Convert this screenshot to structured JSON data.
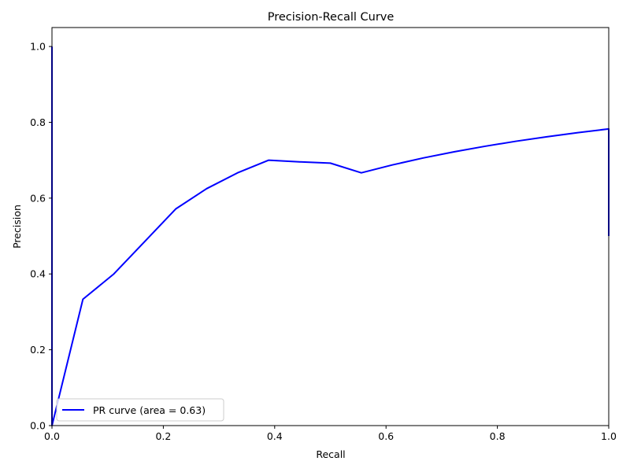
{
  "chart_data": {
    "type": "line",
    "title": "Precision-Recall Curve",
    "xlabel": "Recall",
    "ylabel": "Precision",
    "xlim": [
      0.0,
      1.0
    ],
    "ylim": [
      0.0,
      1.05
    ],
    "xticks": [
      0.0,
      0.2,
      0.4,
      0.6,
      0.8,
      1.0
    ],
    "xtick_labels": [
      "0.0",
      "0.2",
      "0.4",
      "0.6",
      "0.8",
      "1.0"
    ],
    "yticks": [
      0.0,
      0.2,
      0.4,
      0.6,
      0.8,
      1.0
    ],
    "ytick_labels": [
      "0.0",
      "0.2",
      "0.4",
      "0.6",
      "0.8",
      "1.0"
    ],
    "grid": false,
    "legend_position": "lower left",
    "series": [
      {
        "name": "PR curve (area = 0.63)",
        "color": "#0000ff",
        "x": [
          0.0,
          0.0,
          0.0,
          0.0556,
          0.1111,
          0.1667,
          0.2222,
          0.2778,
          0.3333,
          0.3889,
          0.4444,
          0.5,
          0.5556,
          0.6111,
          0.6667,
          0.7222,
          0.7778,
          0.8333,
          0.8889,
          0.9444,
          1.0,
          1.0
        ],
        "y": [
          1.0,
          0.0,
          0.0,
          0.3333,
          0.4,
          0.4857,
          0.5714,
          0.625,
          0.6667,
          0.7,
          0.6957,
          0.6923,
          0.6667,
          0.6875,
          0.7059,
          0.7222,
          0.7368,
          0.75,
          0.7619,
          0.7727,
          0.7826,
          0.5
        ]
      }
    ]
  }
}
